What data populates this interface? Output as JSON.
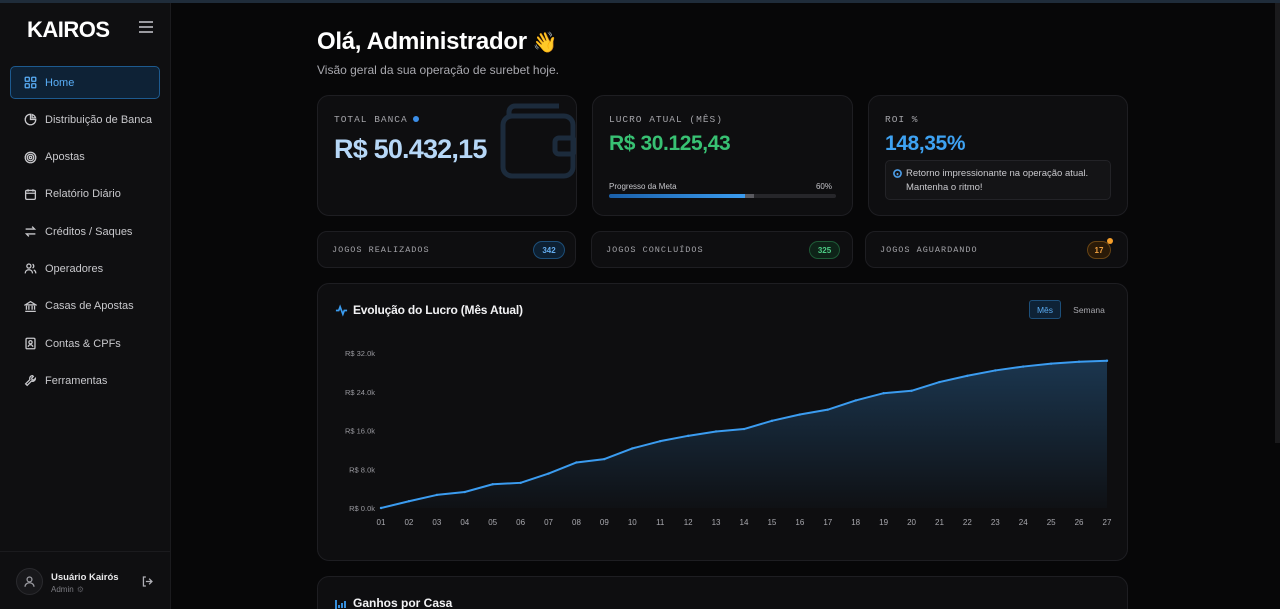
{
  "brand": {
    "logo": "KAIROS"
  },
  "sidebar": {
    "items": [
      {
        "label": "Home",
        "icon": "grid-icon",
        "active": true
      },
      {
        "label": "Distribuição de Banca",
        "icon": "pie-chart-icon"
      },
      {
        "label": "Apostas",
        "icon": "target-icon"
      },
      {
        "label": "Relatório Diário",
        "icon": "calendar-icon"
      },
      {
        "label": "Créditos / Saques",
        "icon": "arrows-swap-icon"
      },
      {
        "label": "Operadores",
        "icon": "users-icon"
      },
      {
        "label": "Casas de Apostas",
        "icon": "bank-icon"
      },
      {
        "label": "Contas & CPFs",
        "icon": "id-card-icon"
      },
      {
        "label": "Ferramentas",
        "icon": "wrench-icon"
      }
    ],
    "user": {
      "name": "Usuário Kairós",
      "role": "Admin"
    }
  },
  "header": {
    "greeting": "Olá, Administrador",
    "wave": "👋",
    "subtitle": "Visão geral da sua operação de surebet hoje."
  },
  "cards": {
    "banca": {
      "label": "TOTAL BANCA",
      "value": "R$ 50.432,15"
    },
    "lucro": {
      "label": "LUCRO ATUAL (MÊS)",
      "value": "R$ 30.125,43",
      "goal_label": "Progresso da Meta",
      "goal_pct": "60%",
      "goal_value": 0.6
    },
    "roi": {
      "label": "ROI %",
      "value": "148,35%",
      "note": "Retorno impressionante na operação atual. Mantenha o ritmo!"
    }
  },
  "stats": [
    {
      "label": "JOGOS REALIZADOS",
      "value": "342"
    },
    {
      "label": "JOGOS CONCLUÍDOS",
      "value": "325"
    },
    {
      "label": "JOGOS AGUARDANDO",
      "value": "17"
    }
  ],
  "chart": {
    "title": "Evolução do Lucro (Mês Atual)",
    "tabs": {
      "month": "Mês",
      "week": "Semana"
    }
  },
  "chart_data": {
    "type": "area",
    "x": [
      "01",
      "02",
      "03",
      "04",
      "05",
      "06",
      "07",
      "08",
      "09",
      "10",
      "11",
      "12",
      "13",
      "14",
      "15",
      "16",
      "17",
      "18",
      "19",
      "20",
      "21",
      "22",
      "23",
      "24",
      "25",
      "26",
      "27"
    ],
    "y": [
      0,
      1400,
      2700,
      3300,
      4900,
      5200,
      7100,
      9400,
      10100,
      12300,
      13800,
      14900,
      15800,
      16300,
      18000,
      19300,
      20300,
      22200,
      23700,
      24200,
      26000,
      27300,
      28400,
      29200,
      29800,
      30200,
      30400
    ],
    "ylim": [
      0,
      32000
    ],
    "yticks": [
      "R$ 0.0k",
      "R$ 8.0k",
      "R$ 16.0k",
      "R$ 24.0k",
      "R$ 32.0k"
    ],
    "ytick_values": [
      0,
      8000,
      16000,
      24000,
      32000
    ],
    "color": "#3b9cf0"
  },
  "bottom": {
    "title": "Ganhos por Casa"
  },
  "colors": {
    "accent": "#3b9cf0",
    "green": "#38c173",
    "orange": "#f0a040"
  }
}
